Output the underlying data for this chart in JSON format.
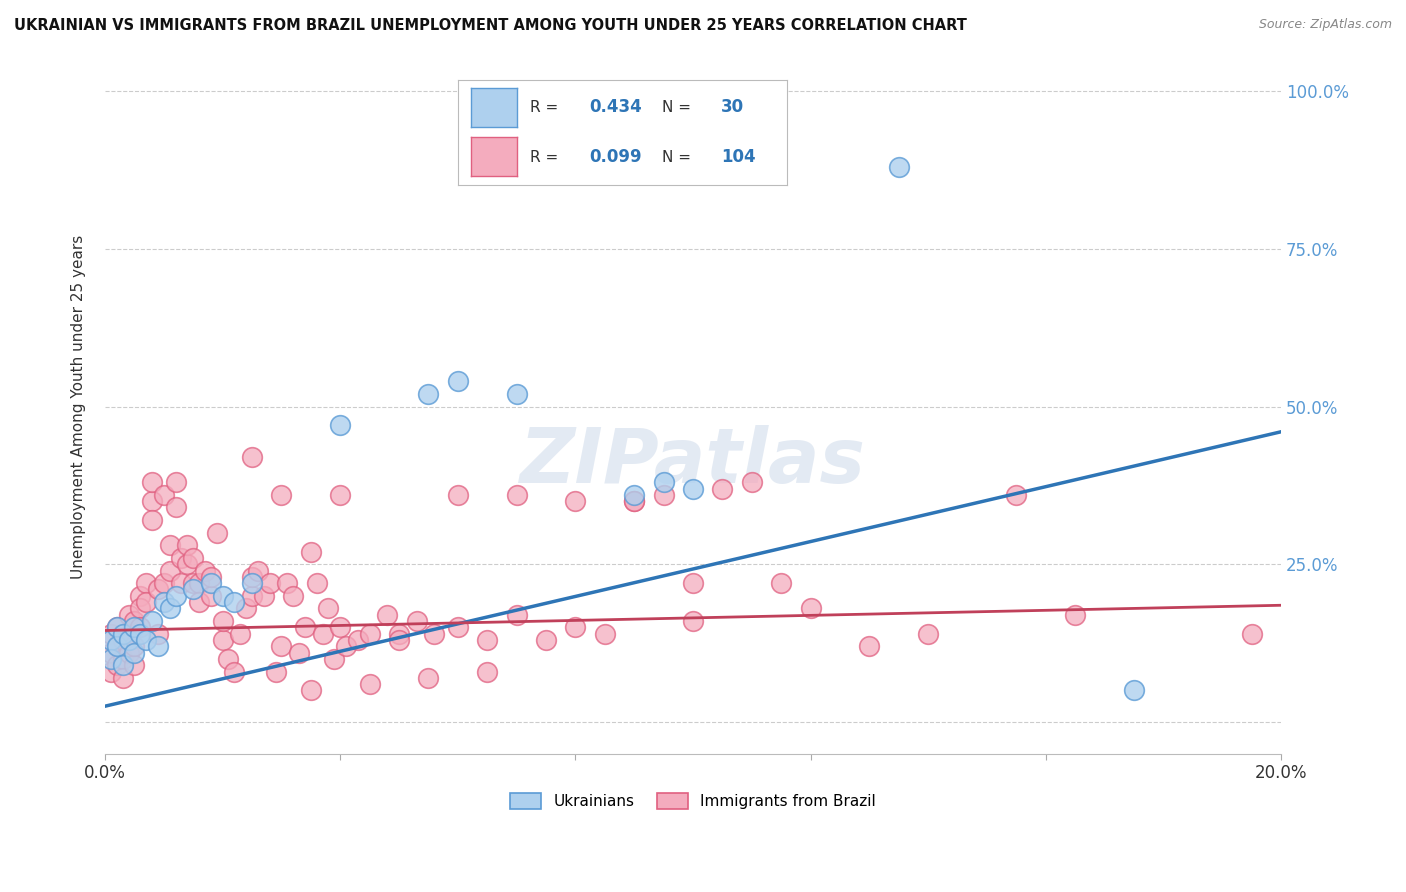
{
  "title": "UKRAINIAN VS IMMIGRANTS FROM BRAZIL UNEMPLOYMENT AMONG YOUTH UNDER 25 YEARS CORRELATION CHART",
  "source": "Source: ZipAtlas.com",
  "ylabel": "Unemployment Among Youth under 25 years",
  "yticks": [
    0.0,
    0.25,
    0.5,
    0.75,
    1.0
  ],
  "ytick_labels": [
    "",
    "25.0%",
    "50.0%",
    "75.0%",
    "100.0%"
  ],
  "blue_R": 0.434,
  "blue_N": 30,
  "pink_R": 0.099,
  "pink_N": 104,
  "legend_label_blue": "Ukrainians",
  "legend_label_pink": "Immigrants from Brazil",
  "blue_color": "#AED0EE",
  "blue_edge_color": "#5B9BD5",
  "blue_line_color": "#2E75B6",
  "pink_color": "#F4ACBE",
  "pink_edge_color": "#E06080",
  "pink_line_color": "#C0405A",
  "background_color": "#FFFFFF",
  "watermark": "ZIPatlas",
  "blue_trend": [
    0.025,
    0.46
  ],
  "pink_trend": [
    0.145,
    0.185
  ],
  "blue_scatter_x": [
    0.001,
    0.001,
    0.002,
    0.002,
    0.003,
    0.003,
    0.004,
    0.005,
    0.005,
    0.006,
    0.007,
    0.008,
    0.009,
    0.01,
    0.011,
    0.012,
    0.015,
    0.018,
    0.02,
    0.022,
    0.025,
    0.04,
    0.055,
    0.06,
    0.07,
    0.09,
    0.095,
    0.1,
    0.135,
    0.175
  ],
  "blue_scatter_y": [
    0.13,
    0.1,
    0.15,
    0.12,
    0.14,
    0.09,
    0.13,
    0.11,
    0.15,
    0.14,
    0.13,
    0.16,
    0.12,
    0.19,
    0.18,
    0.2,
    0.21,
    0.22,
    0.2,
    0.19,
    0.22,
    0.47,
    0.52,
    0.54,
    0.52,
    0.36,
    0.38,
    0.37,
    0.88,
    0.05
  ],
  "pink_scatter_x": [
    0.001,
    0.001,
    0.001,
    0.002,
    0.002,
    0.002,
    0.003,
    0.003,
    0.003,
    0.004,
    0.004,
    0.004,
    0.005,
    0.005,
    0.005,
    0.006,
    0.006,
    0.006,
    0.007,
    0.007,
    0.008,
    0.008,
    0.008,
    0.009,
    0.009,
    0.01,
    0.01,
    0.011,
    0.011,
    0.012,
    0.012,
    0.013,
    0.013,
    0.014,
    0.014,
    0.015,
    0.015,
    0.016,
    0.016,
    0.017,
    0.018,
    0.018,
    0.019,
    0.02,
    0.02,
    0.021,
    0.022,
    0.023,
    0.024,
    0.025,
    0.025,
    0.026,
    0.027,
    0.028,
    0.029,
    0.03,
    0.031,
    0.032,
    0.033,
    0.034,
    0.035,
    0.036,
    0.037,
    0.038,
    0.039,
    0.04,
    0.041,
    0.043,
    0.045,
    0.048,
    0.05,
    0.053,
    0.056,
    0.06,
    0.065,
    0.07,
    0.075,
    0.08,
    0.085,
    0.09,
    0.095,
    0.1,
    0.105,
    0.11,
    0.115,
    0.12,
    0.13,
    0.14,
    0.155,
    0.165,
    0.195,
    0.025,
    0.03,
    0.04,
    0.05,
    0.06,
    0.07,
    0.08,
    0.09,
    0.1,
    0.035,
    0.045,
    0.055,
    0.065
  ],
  "pink_scatter_y": [
    0.14,
    0.11,
    0.08,
    0.12,
    0.15,
    0.09,
    0.13,
    0.1,
    0.07,
    0.11,
    0.14,
    0.17,
    0.09,
    0.16,
    0.12,
    0.2,
    0.18,
    0.15,
    0.22,
    0.19,
    0.35,
    0.38,
    0.32,
    0.21,
    0.14,
    0.36,
    0.22,
    0.28,
    0.24,
    0.38,
    0.34,
    0.26,
    0.22,
    0.25,
    0.28,
    0.22,
    0.26,
    0.22,
    0.19,
    0.24,
    0.2,
    0.23,
    0.3,
    0.13,
    0.16,
    0.1,
    0.08,
    0.14,
    0.18,
    0.2,
    0.23,
    0.24,
    0.2,
    0.22,
    0.08,
    0.12,
    0.22,
    0.2,
    0.11,
    0.15,
    0.27,
    0.22,
    0.14,
    0.18,
    0.1,
    0.15,
    0.12,
    0.13,
    0.14,
    0.17,
    0.14,
    0.16,
    0.14,
    0.15,
    0.13,
    0.17,
    0.13,
    0.15,
    0.14,
    0.35,
    0.36,
    0.22,
    0.37,
    0.38,
    0.22,
    0.18,
    0.12,
    0.14,
    0.36,
    0.17,
    0.14,
    0.42,
    0.36,
    0.36,
    0.13,
    0.36,
    0.36,
    0.35,
    0.35,
    0.16,
    0.05,
    0.06,
    0.07,
    0.08
  ]
}
